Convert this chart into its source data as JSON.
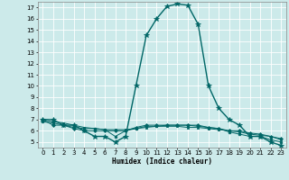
{
  "xlabel": "Humidex (Indice chaleur)",
  "ylabel": "",
  "background_color": "#cceaea",
  "line_color": "#006666",
  "xlim": [
    -0.5,
    23.5
  ],
  "ylim": [
    4.5,
    17.5
  ],
  "xticks": [
    0,
    1,
    2,
    3,
    4,
    5,
    6,
    7,
    8,
    9,
    10,
    11,
    12,
    13,
    14,
    15,
    16,
    17,
    18,
    19,
    20,
    21,
    22,
    23
  ],
  "yticks": [
    5,
    6,
    7,
    8,
    9,
    10,
    11,
    12,
    13,
    14,
    15,
    16,
    17
  ],
  "series": [
    {
      "x": [
        0,
        1,
        2,
        3,
        4,
        5,
        6,
        7,
        8,
        9,
        10,
        11,
        12,
        13,
        14,
        15,
        16,
        17,
        18,
        19,
        20,
        21,
        22,
        23
      ],
      "y": [
        7.0,
        7.0,
        6.5,
        6.5,
        6.0,
        5.5,
        5.5,
        5.0,
        5.5,
        10.0,
        14.5,
        16.0,
        17.1,
        17.3,
        17.2,
        15.5,
        10.0,
        8.0,
        7.0,
        6.5,
        5.5,
        5.5,
        5.0,
        4.7
      ],
      "marker": "*",
      "markersize": 4,
      "linewidth": 1.0
    },
    {
      "x": [
        0,
        1,
        2,
        3,
        4,
        5,
        6,
        7,
        8,
        9,
        10,
        11,
        12,
        13,
        14,
        15,
        16,
        17,
        18,
        19,
        20,
        21,
        22,
        23
      ],
      "y": [
        7.0,
        6.5,
        6.5,
        6.2,
        6.0,
        6.0,
        6.0,
        6.0,
        6.0,
        6.3,
        6.5,
        6.5,
        6.5,
        6.5,
        6.5,
        6.5,
        6.3,
        6.2,
        6.0,
        6.0,
        5.8,
        5.7,
        5.5,
        5.3
      ],
      "marker": "D",
      "markersize": 2,
      "linewidth": 0.7
    },
    {
      "x": [
        0,
        1,
        2,
        3,
        4,
        5,
        6,
        7,
        8,
        9,
        10,
        11,
        12,
        13,
        14,
        15,
        16,
        17,
        18,
        19,
        20,
        21,
        22,
        23
      ],
      "y": [
        7.0,
        6.8,
        6.7,
        6.5,
        6.3,
        6.2,
        6.1,
        6.1,
        6.1,
        6.2,
        6.3,
        6.4,
        6.4,
        6.4,
        6.3,
        6.3,
        6.2,
        6.1,
        6.0,
        5.9,
        5.7,
        5.6,
        5.5,
        5.2
      ],
      "marker": "s",
      "markersize": 2,
      "linewidth": 0.7
    },
    {
      "x": [
        0,
        1,
        2,
        3,
        4,
        5,
        6,
        7,
        8,
        9,
        10,
        11,
        12,
        13,
        14,
        15,
        16,
        17,
        18,
        19,
        20,
        21,
        22,
        23
      ],
      "y": [
        6.8,
        6.7,
        6.5,
        6.3,
        6.2,
        6.2,
        6.1,
        5.5,
        6.0,
        6.2,
        6.4,
        6.4,
        6.5,
        6.5,
        6.5,
        6.4,
        6.3,
        6.2,
        5.9,
        5.7,
        5.5,
        5.5,
        5.2,
        5.0
      ],
      "marker": "o",
      "markersize": 2,
      "linewidth": 0.7
    }
  ]
}
